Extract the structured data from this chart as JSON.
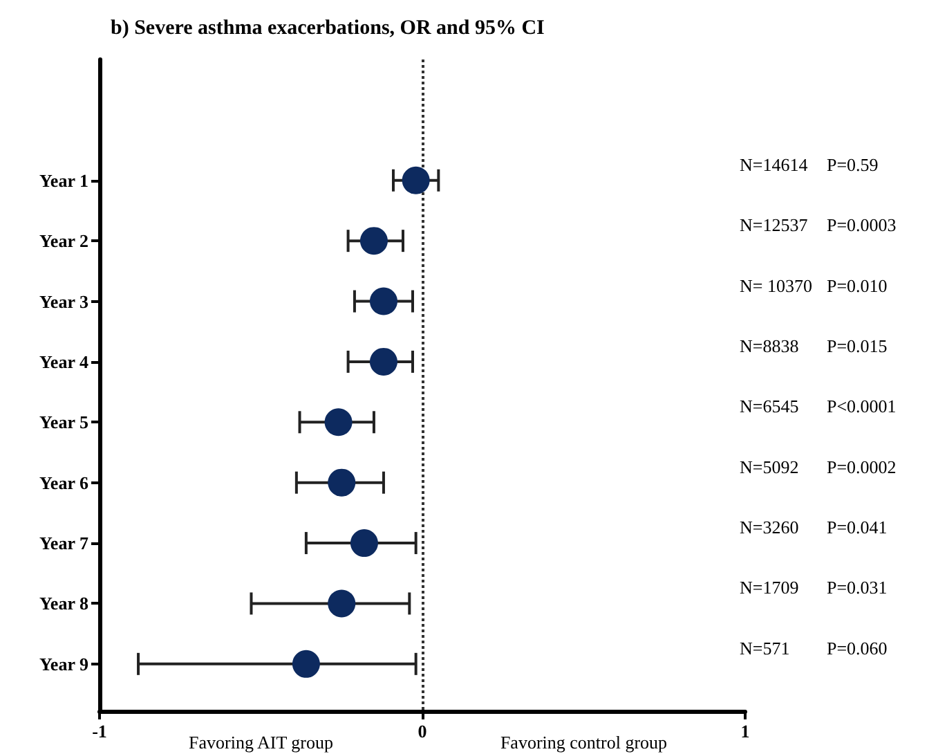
{
  "chart_data": {
    "type": "scatter",
    "orientation": "horizontal",
    "title": "b) Severe asthma exacerbations, OR and 95% CI",
    "categories": [
      "Year 1",
      "Year 2",
      "Year 3",
      "Year 4",
      "Year 5",
      "Year 6",
      "Year 7",
      "Year 8",
      "Year 9"
    ],
    "values": [
      -0.02,
      -0.15,
      -0.12,
      -0.12,
      -0.26,
      -0.25,
      -0.18,
      -0.25,
      -0.36
    ],
    "errors": [
      [
        -0.09,
        0.05
      ],
      [
        -0.23,
        -0.06
      ],
      [
        -0.21,
        -0.03
      ],
      [
        -0.23,
        -0.03
      ],
      [
        -0.38,
        -0.15
      ],
      [
        -0.39,
        -0.12
      ],
      [
        -0.36,
        -0.02
      ],
      [
        -0.53,
        -0.04
      ],
      [
        -0.88,
        -0.02
      ]
    ],
    "color": "#0d2a5f",
    "marker": "circle",
    "grid": false,
    "xlim": [
      -1,
      1
    ],
    "xticks": [
      -1,
      0,
      1
    ],
    "ref_lines": [
      {
        "axis": "x",
        "value": 0,
        "line_style": "dotted",
        "color": "#333333"
      }
    ],
    "annotations": [
      "N=14614",
      "P=0.59",
      "N=12537",
      "P=0.0003",
      "N= 10370",
      "P=0.010",
      "N=8838",
      "P=0.015",
      "N=6545",
      "P<0.0001",
      "N=5092",
      "P=0.0002",
      "N=3260",
      "P=0.041",
      "N=1709",
      "P=0.031",
      "N=571",
      "P=0.060",
      "Favoring AIT group",
      "Favoring control group"
    ]
  }
}
